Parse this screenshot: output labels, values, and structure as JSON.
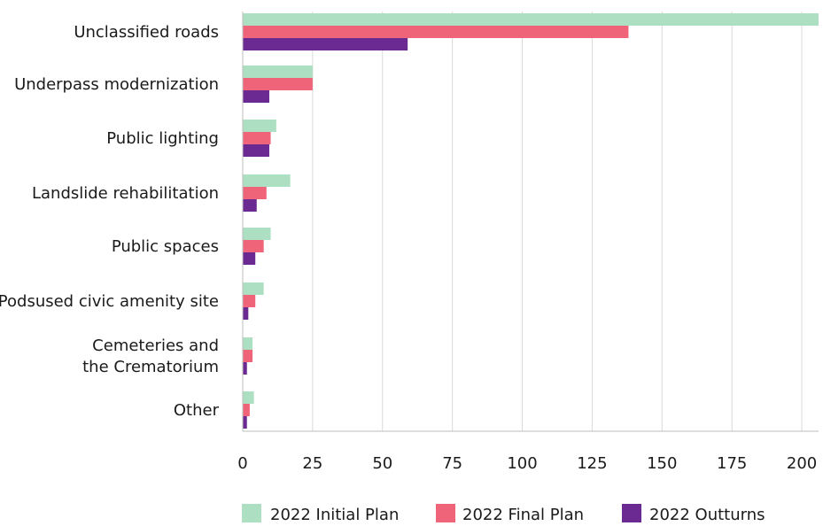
{
  "chart_data": {
    "type": "bar",
    "orientation": "horizontal",
    "categories": [
      [
        "Unclassified roads"
      ],
      [
        "Underpass modernization"
      ],
      [
        "Public lighting"
      ],
      [
        "Landslide rehabilitation"
      ],
      [
        "Public spaces"
      ],
      [
        "Podsused civic amenity site"
      ],
      [
        "Cemeteries and",
        "the Crematorium"
      ],
      [
        "Other"
      ]
    ],
    "series": [
      {
        "name": "2022 Initial Plan",
        "color": "#addfc3",
        "values": [
          206,
          25,
          12,
          17,
          10,
          7.5,
          3.5,
          4
        ]
      },
      {
        "name": "2022 Final Plan",
        "color": "#f0647a",
        "values": [
          138,
          25,
          10,
          8.5,
          7.5,
          4.5,
          3.5,
          2.5
        ]
      },
      {
        "name": "2022 Outturns",
        "color": "#6a2a91",
        "values": [
          59,
          9.5,
          9.5,
          5,
          4.5,
          2,
          1.5,
          1.5
        ]
      }
    ],
    "x_ticks": [
      "0",
      "25",
      "50",
      "75",
      "100",
      "125",
      "150",
      "175",
      "200"
    ],
    "xlim": [
      0,
      206
    ],
    "grid": "vertical",
    "legend_position": "bottom",
    "title": "",
    "xlabel": "",
    "ylabel": ""
  }
}
